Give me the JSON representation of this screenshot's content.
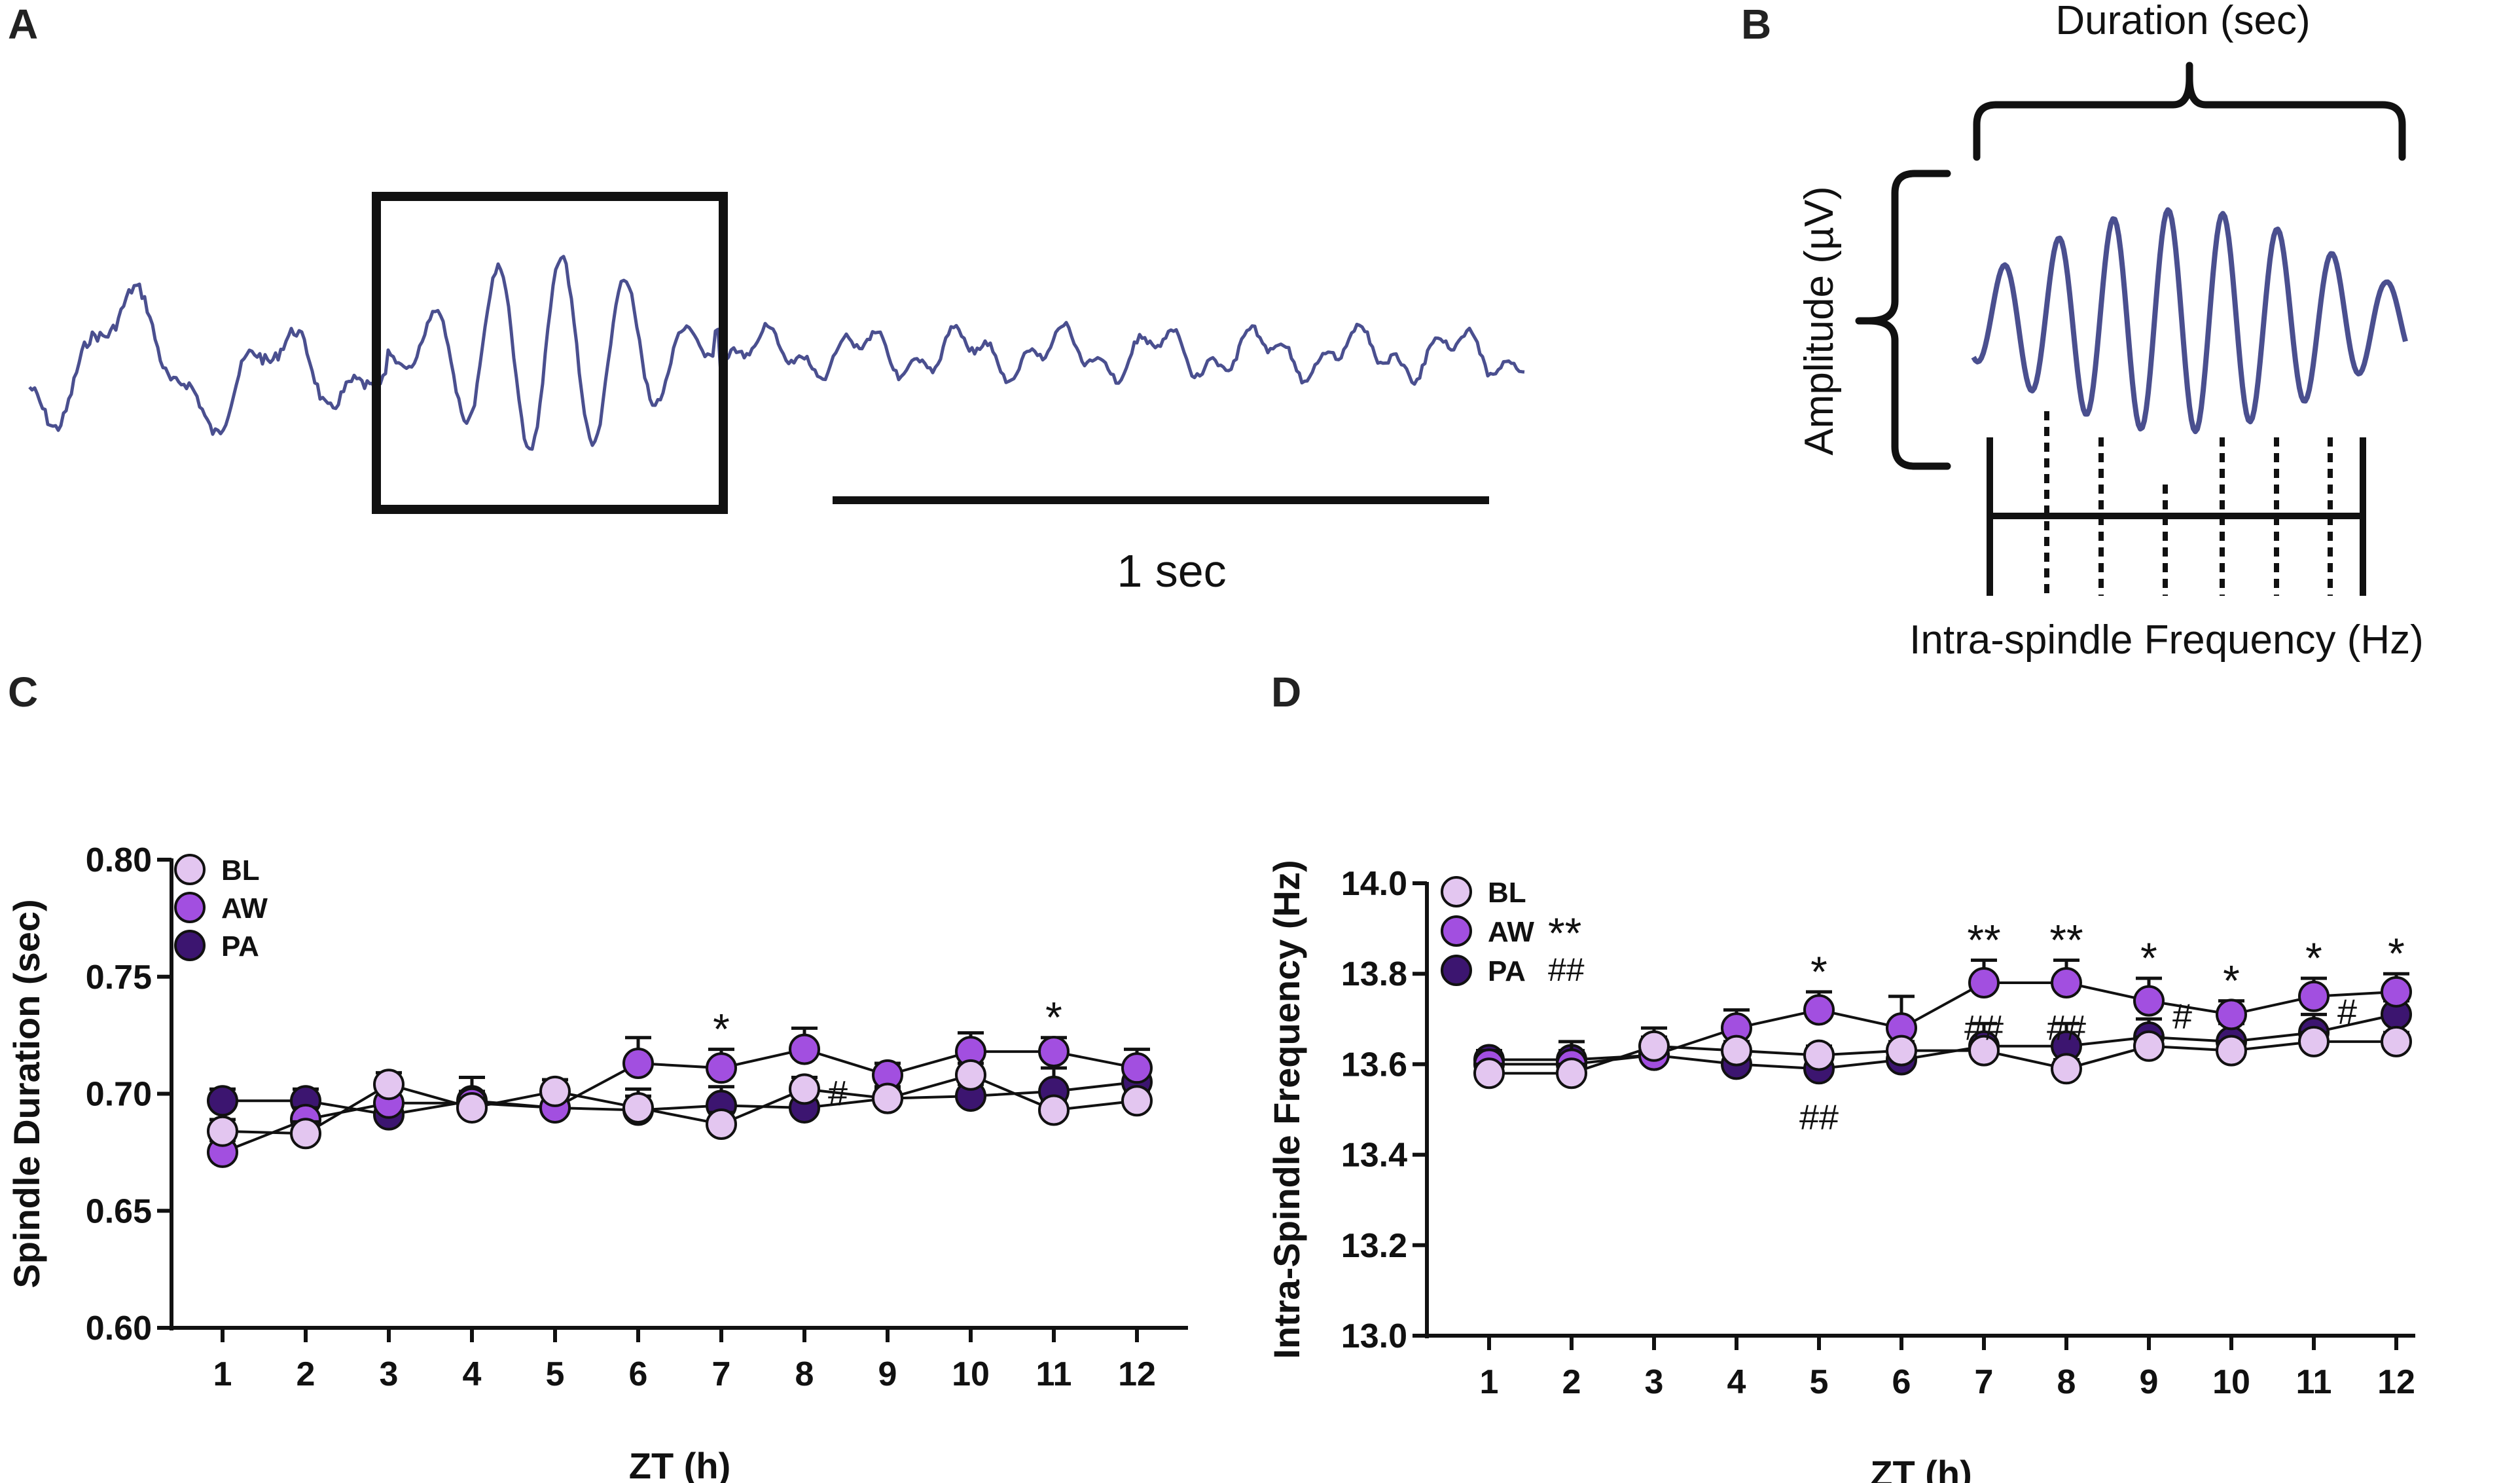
{
  "panels": {
    "a": "A",
    "b": "B",
    "c": "C",
    "d": "D"
  },
  "colors": {
    "trace": "#4a4f8f",
    "BL": "#e3c6f0",
    "AW": "#a24fe0",
    "PA": "#3c1570",
    "axis": "#111111"
  },
  "panel_a": {
    "scale_label": "1 sec"
  },
  "panel_b": {
    "duration_label": "Duration (sec)",
    "amplitude_label": "Amplitude (µV)",
    "frequency_label": "Intra-spindle Frequency (Hz)"
  },
  "chart_data": [
    {
      "panel": "C",
      "type": "line",
      "ylabel": "Spindle Duration (sec)",
      "xlabel": "ZT (h)",
      "x": [
        1,
        2,
        3,
        4,
        5,
        6,
        7,
        8,
        9,
        10,
        11,
        12
      ],
      "ylim": [
        0.6,
        0.8
      ],
      "yticks": [
        0.6,
        0.65,
        0.7,
        0.75,
        0.8
      ],
      "ytick_labels": [
        "0.60",
        "0.65",
        "0.70",
        "0.75",
        "0.80"
      ],
      "legend": "top-left",
      "series": [
        {
          "name": "PA",
          "values": [
            0.697,
            0.697,
            0.691,
            0.697,
            0.694,
            0.693,
            0.695,
            0.694,
            0.698,
            0.699,
            0.701,
            0.705
          ],
          "errors": [
            0.005,
            0.005,
            0.005,
            0.01,
            0.01,
            0.009,
            0.008,
            0.005,
            0.005,
            0.005,
            0.01,
            0.008
          ]
        },
        {
          "name": "AW",
          "values": [
            0.675,
            0.689,
            0.696,
            0.696,
            0.694,
            0.713,
            0.711,
            0.719,
            0.708,
            0.718,
            0.718,
            0.711
          ],
          "errors": [
            0.005,
            0.005,
            0.008,
            0.005,
            0.005,
            0.011,
            0.008,
            0.009,
            0.005,
            0.008,
            0.006,
            0.008
          ]
        },
        {
          "name": "BL",
          "values": [
            0.684,
            0.683,
            0.704,
            0.694,
            0.701,
            0.694,
            0.687,
            0.702,
            0.698,
            0.708,
            0.693,
            0.697
          ],
          "errors": [
            0.005,
            0.005,
            0.005,
            0.004,
            0.005,
            0.005,
            0.005,
            0.005,
            0.004,
            0.005,
            0.004,
            0.004
          ]
        }
      ],
      "annotations": [
        {
          "x": 7,
          "text": "*",
          "anchor": "AW"
        },
        {
          "x": 11,
          "text": "*",
          "anchor": "AW"
        },
        {
          "x": 8,
          "text": "#",
          "anchor": "side"
        }
      ]
    },
    {
      "panel": "D",
      "type": "line",
      "ylabel": "Intra-Spindle Frequency (Hz)",
      "xlabel": "ZT (h)",
      "x": [
        1,
        2,
        3,
        4,
        5,
        6,
        7,
        8,
        9,
        10,
        11,
        12
      ],
      "ylim": [
        13.0,
        14.0
      ],
      "yticks": [
        13.0,
        13.2,
        13.4,
        13.6,
        13.8,
        14.0
      ],
      "ytick_labels": [
        "13.0",
        "13.2",
        "13.4",
        "13.6",
        "13.8",
        "14.0"
      ],
      "legend": "top-left",
      "legend_marks": {
        "AW": "**",
        "PA": "##"
      },
      "series": [
        {
          "name": "PA",
          "values": [
            13.61,
            13.61,
            13.62,
            13.6,
            13.59,
            13.61,
            13.64,
            13.64,
            13.66,
            13.65,
            13.67,
            13.71
          ],
          "errors": [
            0.02,
            0.02,
            0.02,
            0.02,
            0.02,
            0.02,
            0.05,
            0.05,
            0.04,
            0.04,
            0.04,
            0.03
          ]
        },
        {
          "name": "AW",
          "values": [
            13.6,
            13.6,
            13.62,
            13.68,
            13.72,
            13.68,
            13.78,
            13.78,
            13.74,
            13.71,
            13.75,
            13.76
          ],
          "errors": [
            0.03,
            0.05,
            0.06,
            0.04,
            0.04,
            0.07,
            0.05,
            0.05,
            0.05,
            0.03,
            0.04,
            0.04
          ]
        },
        {
          "name": "BL",
          "values": [
            13.58,
            13.58,
            13.64,
            13.63,
            13.62,
            13.63,
            13.63,
            13.59,
            13.64,
            13.63,
            13.65,
            13.65
          ],
          "errors": [
            0.02,
            0.02,
            0.02,
            0.02,
            0.02,
            0.02,
            0.02,
            0.02,
            0.02,
            0.02,
            0.02,
            0.02
          ]
        }
      ],
      "annotations": [
        {
          "x": 5,
          "text": "*",
          "anchor": "AW"
        },
        {
          "x": 7,
          "text": "**",
          "anchor": "AW"
        },
        {
          "x": 8,
          "text": "**",
          "anchor": "AW"
        },
        {
          "x": 9,
          "text": "*",
          "anchor": "AW"
        },
        {
          "x": 10,
          "text": "*",
          "anchor": "AW"
        },
        {
          "x": 11,
          "text": "*",
          "anchor": "AW"
        },
        {
          "x": 12,
          "text": "*",
          "anchor": "AW"
        },
        {
          "x": 7,
          "text": "##",
          "anchor": "mid"
        },
        {
          "x": 8,
          "text": "##",
          "anchor": "mid"
        },
        {
          "x": 9,
          "text": "#",
          "anchor": "side"
        },
        {
          "x": 11,
          "text": "#",
          "anchor": "side"
        },
        {
          "x": 5,
          "text": "##",
          "anchor": "below"
        }
      ]
    }
  ]
}
